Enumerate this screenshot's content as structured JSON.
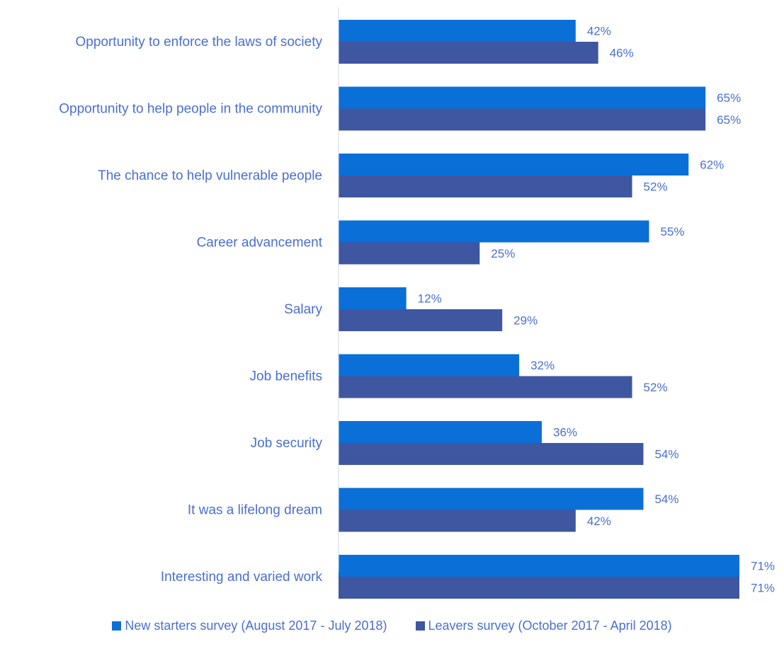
{
  "chart_data": {
    "type": "bar",
    "orientation": "horizontal",
    "categories": [
      "Opportunity to enforce the laws of society",
      "Opportunity to help people in the community",
      "The chance to help vulnerable people",
      "Career advancement",
      "Salary",
      "Job benefits",
      "Job security",
      "It was a lifelong dream",
      "Interesting and varied work"
    ],
    "series": [
      {
        "name": "New starters survey (August 2017 - July 2018)",
        "values": [
          42,
          65,
          62,
          55,
          12,
          32,
          36,
          54,
          71
        ],
        "labels": [
          "42%",
          "65%",
          "62%",
          "55%",
          "12%",
          "32%",
          "36%",
          "54%",
          "71%"
        ],
        "color": "#0b6fd8"
      },
      {
        "name": "Leavers survey (October 2017 - April 2018)",
        "values": [
          46,
          65,
          52,
          25,
          29,
          52,
          54,
          42,
          71
        ],
        "labels": [
          "46%",
          "65%",
          "52%",
          "25%",
          "29%",
          "52%",
          "54%",
          "42%",
          "71%"
        ],
        "color": "#3f56a0"
      }
    ],
    "xlim": [
      0,
      71
    ],
    "axis_color": "#d0d8e8",
    "text_color": "#4a6fd0",
    "legend_position": "bottom",
    "grid": false
  }
}
